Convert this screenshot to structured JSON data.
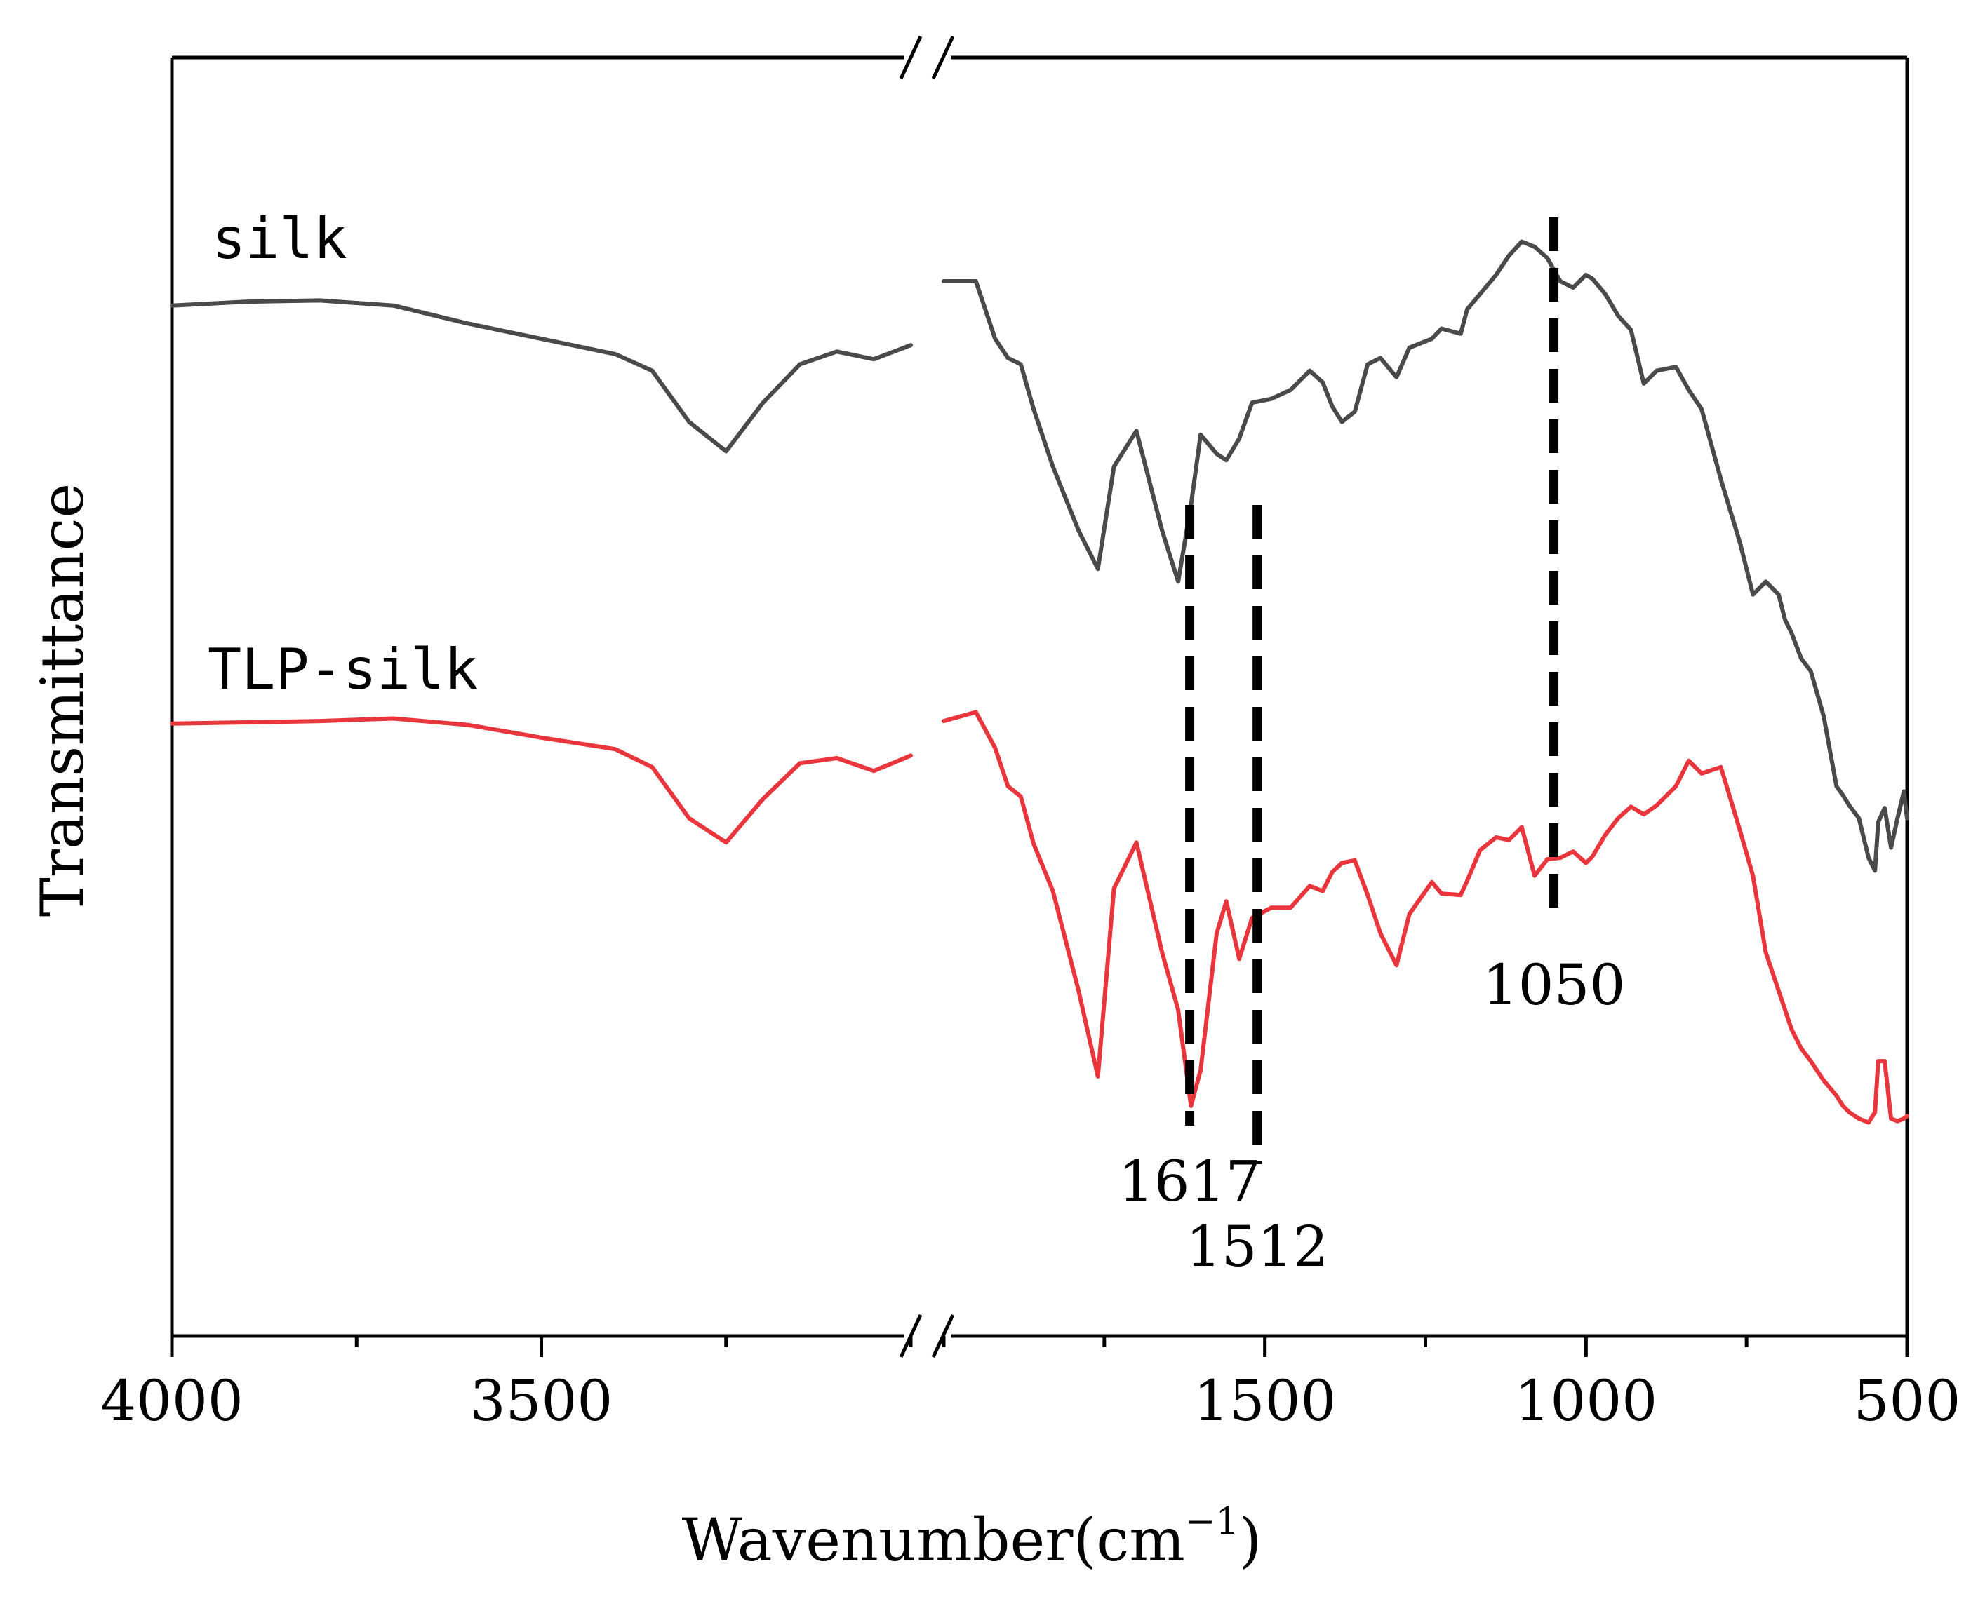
{
  "chart_data": {
    "type": "line",
    "xlabel": "Wavenumber",
    "xlabel_unit_base": "cm",
    "xlabel_unit_exp": "−1",
    "ylabel": "Transmittance",
    "x_axis": {
      "broken": true,
      "left_segment": {
        "range": [
          4000,
          3000
        ],
        "ticks": [
          4000,
          3500
        ]
      },
      "right_segment": {
        "range": [
          2000,
          500
        ],
        "ticks": [
          1500,
          1000,
          500
        ]
      }
    },
    "y_axis": {
      "range": [
        0,
        100
      ],
      "ticks": []
    },
    "series": [
      {
        "name": "silk",
        "color": "#4a4a4a",
        "left": [
          [
            4000,
            80.6
          ],
          [
            3900,
            80.9
          ],
          [
            3800,
            81.0
          ],
          [
            3700,
            80.6
          ],
          [
            3600,
            79.2
          ],
          [
            3500,
            78.0
          ],
          [
            3400,
            76.8
          ],
          [
            3350,
            75.5
          ],
          [
            3300,
            71.5
          ],
          [
            3250,
            69.2
          ],
          [
            3200,
            73.0
          ],
          [
            3150,
            76.0
          ],
          [
            3100,
            77.0
          ],
          [
            3050,
            76.4
          ],
          [
            3000,
            77.5
          ]
        ],
        "right": [
          [
            2000,
            82.5
          ],
          [
            1950,
            82.5
          ],
          [
            1920,
            78.0
          ],
          [
            1900,
            76.5
          ],
          [
            1880,
            76.0
          ],
          [
            1860,
            72.5
          ],
          [
            1830,
            68.0
          ],
          [
            1790,
            63.0
          ],
          [
            1760,
            60.0
          ],
          [
            1735,
            68.0
          ],
          [
            1700,
            70.8
          ],
          [
            1660,
            63.0
          ],
          [
            1635,
            59.0
          ],
          [
            1615,
            65.0
          ],
          [
            1600,
            70.5
          ],
          [
            1575,
            69.0
          ],
          [
            1560,
            68.5
          ],
          [
            1540,
            70.2
          ],
          [
            1520,
            73.0
          ],
          [
            1490,
            73.3
          ],
          [
            1460,
            74.0
          ],
          [
            1430,
            75.5
          ],
          [
            1410,
            74.6
          ],
          [
            1395,
            72.7
          ],
          [
            1380,
            71.5
          ],
          [
            1360,
            72.3
          ],
          [
            1340,
            76.0
          ],
          [
            1320,
            76.5
          ],
          [
            1295,
            75.0
          ],
          [
            1275,
            77.3
          ],
          [
            1240,
            78.0
          ],
          [
            1225,
            78.8
          ],
          [
            1195,
            78.4
          ],
          [
            1185,
            80.3
          ],
          [
            1165,
            81.5
          ],
          [
            1140,
            83.0
          ],
          [
            1120,
            84.5
          ],
          [
            1100,
            85.6
          ],
          [
            1080,
            85.2
          ],
          [
            1060,
            84.3
          ],
          [
            1040,
            82.5
          ],
          [
            1020,
            82.0
          ],
          [
            1000,
            83.0
          ],
          [
            990,
            82.7
          ],
          [
            970,
            81.5
          ],
          [
            950,
            79.8
          ],
          [
            930,
            78.7
          ],
          [
            910,
            74.5
          ],
          [
            890,
            75.5
          ],
          [
            860,
            75.8
          ],
          [
            840,
            74.0
          ],
          [
            820,
            72.5
          ],
          [
            790,
            67.0
          ],
          [
            760,
            62.0
          ],
          [
            740,
            58.0
          ],
          [
            720,
            59.0
          ],
          [
            700,
            58.0
          ],
          [
            690,
            56.0
          ],
          [
            680,
            55.0
          ],
          [
            665,
            53.0
          ],
          [
            650,
            52.0
          ],
          [
            630,
            48.5
          ],
          [
            610,
            43.0
          ],
          [
            600,
            42.3
          ],
          [
            590,
            41.5
          ],
          [
            575,
            40.5
          ],
          [
            560,
            37.4
          ],
          [
            550,
            36.4
          ],
          [
            545,
            40.2
          ],
          [
            535,
            41.3
          ],
          [
            525,
            38.2
          ],
          [
            515,
            40.5
          ],
          [
            505,
            42.6
          ],
          [
            500,
            40.5
          ]
        ]
      },
      {
        "name": "TLP-silk",
        "color": "#e8363c",
        "left": [
          [
            4000,
            47.9
          ],
          [
            3900,
            48.0
          ],
          [
            3800,
            48.1
          ],
          [
            3700,
            48.3
          ],
          [
            3600,
            47.8
          ],
          [
            3500,
            46.8
          ],
          [
            3400,
            45.9
          ],
          [
            3350,
            44.5
          ],
          [
            3300,
            40.5
          ],
          [
            3250,
            38.6
          ],
          [
            3200,
            42.0
          ],
          [
            3150,
            44.8
          ],
          [
            3100,
            45.2
          ],
          [
            3050,
            44.2
          ],
          [
            3000,
            45.4
          ]
        ],
        "right": [
          [
            2000,
            48.1
          ],
          [
            1950,
            48.8
          ],
          [
            1920,
            46.0
          ],
          [
            1900,
            43.0
          ],
          [
            1880,
            42.2
          ],
          [
            1860,
            38.5
          ],
          [
            1830,
            34.8
          ],
          [
            1790,
            27.0
          ],
          [
            1760,
            20.3
          ],
          [
            1735,
            35.0
          ],
          [
            1700,
            38.6
          ],
          [
            1660,
            30.0
          ],
          [
            1635,
            25.5
          ],
          [
            1615,
            18.0
          ],
          [
            1600,
            20.8
          ],
          [
            1575,
            31.5
          ],
          [
            1560,
            34.0
          ],
          [
            1540,
            29.5
          ],
          [
            1520,
            32.7
          ],
          [
            1490,
            33.5
          ],
          [
            1460,
            33.5
          ],
          [
            1430,
            35.2
          ],
          [
            1410,
            34.8
          ],
          [
            1395,
            36.3
          ],
          [
            1380,
            37.0
          ],
          [
            1360,
            37.2
          ],
          [
            1340,
            34.5
          ],
          [
            1320,
            31.5
          ],
          [
            1295,
            29.0
          ],
          [
            1275,
            33.0
          ],
          [
            1240,
            35.5
          ],
          [
            1225,
            34.6
          ],
          [
            1195,
            34.5
          ],
          [
            1185,
            35.6
          ],
          [
            1165,
            38.0
          ],
          [
            1140,
            39.0
          ],
          [
            1120,
            38.8
          ],
          [
            1100,
            39.8
          ],
          [
            1080,
            36.0
          ],
          [
            1060,
            37.3
          ],
          [
            1040,
            37.4
          ],
          [
            1020,
            37.9
          ],
          [
            1000,
            37.0
          ],
          [
            990,
            37.5
          ],
          [
            970,
            39.2
          ],
          [
            950,
            40.5
          ],
          [
            930,
            41.4
          ],
          [
            910,
            40.8
          ],
          [
            890,
            41.5
          ],
          [
            860,
            43.0
          ],
          [
            840,
            45.0
          ],
          [
            820,
            44.0
          ],
          [
            790,
            44.5
          ],
          [
            760,
            39.5
          ],
          [
            740,
            36.0
          ],
          [
            720,
            30.0
          ],
          [
            700,
            27.0
          ],
          [
            690,
            25.5
          ],
          [
            680,
            24.0
          ],
          [
            665,
            22.5
          ],
          [
            650,
            21.5
          ],
          [
            630,
            20.0
          ],
          [
            610,
            18.8
          ],
          [
            600,
            18.0
          ],
          [
            590,
            17.5
          ],
          [
            575,
            17.0
          ],
          [
            560,
            16.7
          ],
          [
            550,
            17.5
          ],
          [
            545,
            21.5
          ],
          [
            535,
            21.5
          ],
          [
            525,
            17.0
          ],
          [
            515,
            16.8
          ],
          [
            505,
            17.0
          ],
          [
            500,
            17.2
          ]
        ]
      }
    ],
    "annotations": [
      {
        "x": 1617,
        "label": "1617",
        "style": "dashed"
      },
      {
        "x": 1512,
        "label": "1512",
        "style": "dashed"
      },
      {
        "x": 1050,
        "label": "1050",
        "style": "dashed"
      }
    ],
    "legend": "inline labels",
    "grid": false
  }
}
